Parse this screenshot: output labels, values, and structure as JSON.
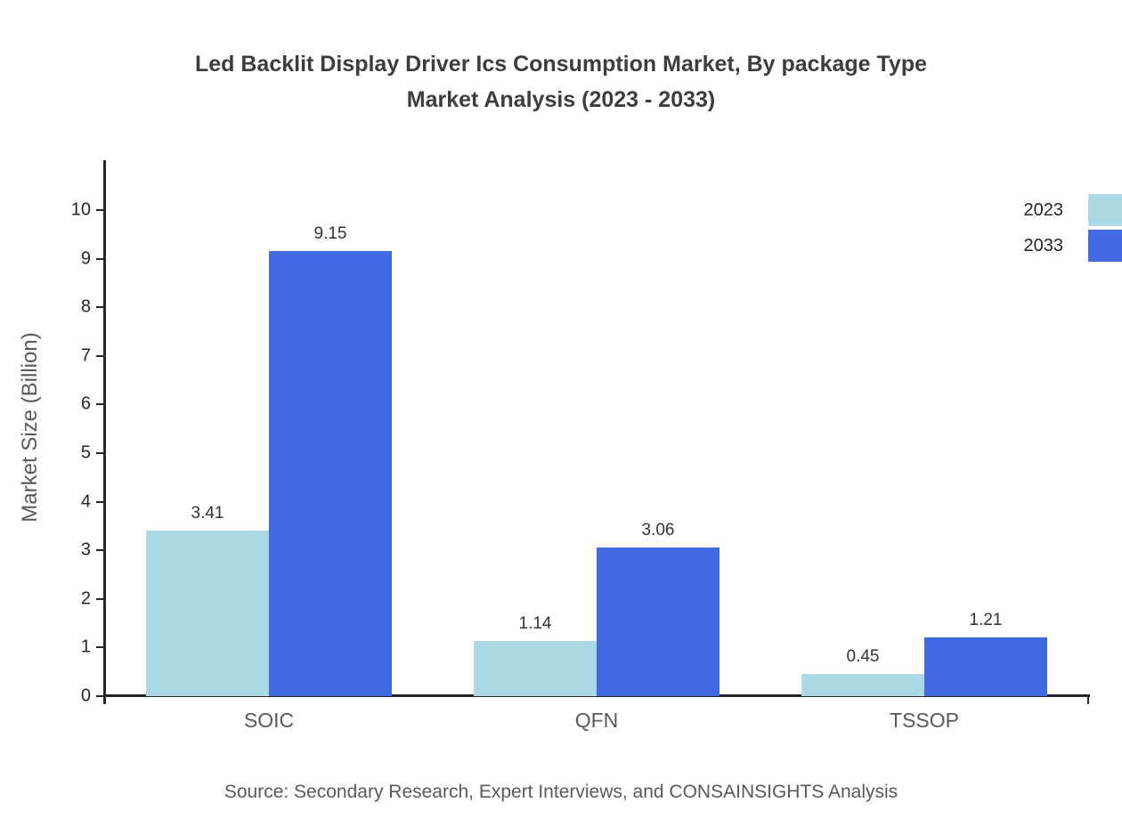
{
  "title": {
    "line1": "Led Backlit Display Driver Ics Consumption Market, By package Type",
    "line2": "Market Analysis (2023 - 2033)"
  },
  "source": "Source: Secondary Research, Expert Interviews, and CONSAINSIGHTS Analysis",
  "colors": {
    "series_2023": "#ADD8E6",
    "series_2033": "#4169E1",
    "axis": "#262626",
    "title_text": "#3d3d3d",
    "muted_text": "#595959"
  },
  "chart_data": {
    "type": "bar",
    "title": "Led Backlit Display Driver Ics Consumption Market, By package Type Market Analysis (2023 - 2033)",
    "categories": [
      "SOIC",
      "QFN",
      "TSSOP"
    ],
    "series": [
      {
        "name": "2023",
        "color": "#ADD8E6",
        "values": [
          3.41,
          1.14,
          0.45
        ]
      },
      {
        "name": "2033",
        "color": "#4169E1",
        "values": [
          9.15,
          3.06,
          1.21
        ]
      }
    ],
    "xlabel": "",
    "ylabel": "Market Size (Billion)",
    "ylim": [
      0,
      10
    ],
    "yticks": [
      0,
      1,
      2,
      3,
      4,
      5,
      6,
      7,
      8,
      9,
      10
    ],
    "grid": false,
    "legend_position": "top-right",
    "value_label_decimals": 2
  }
}
